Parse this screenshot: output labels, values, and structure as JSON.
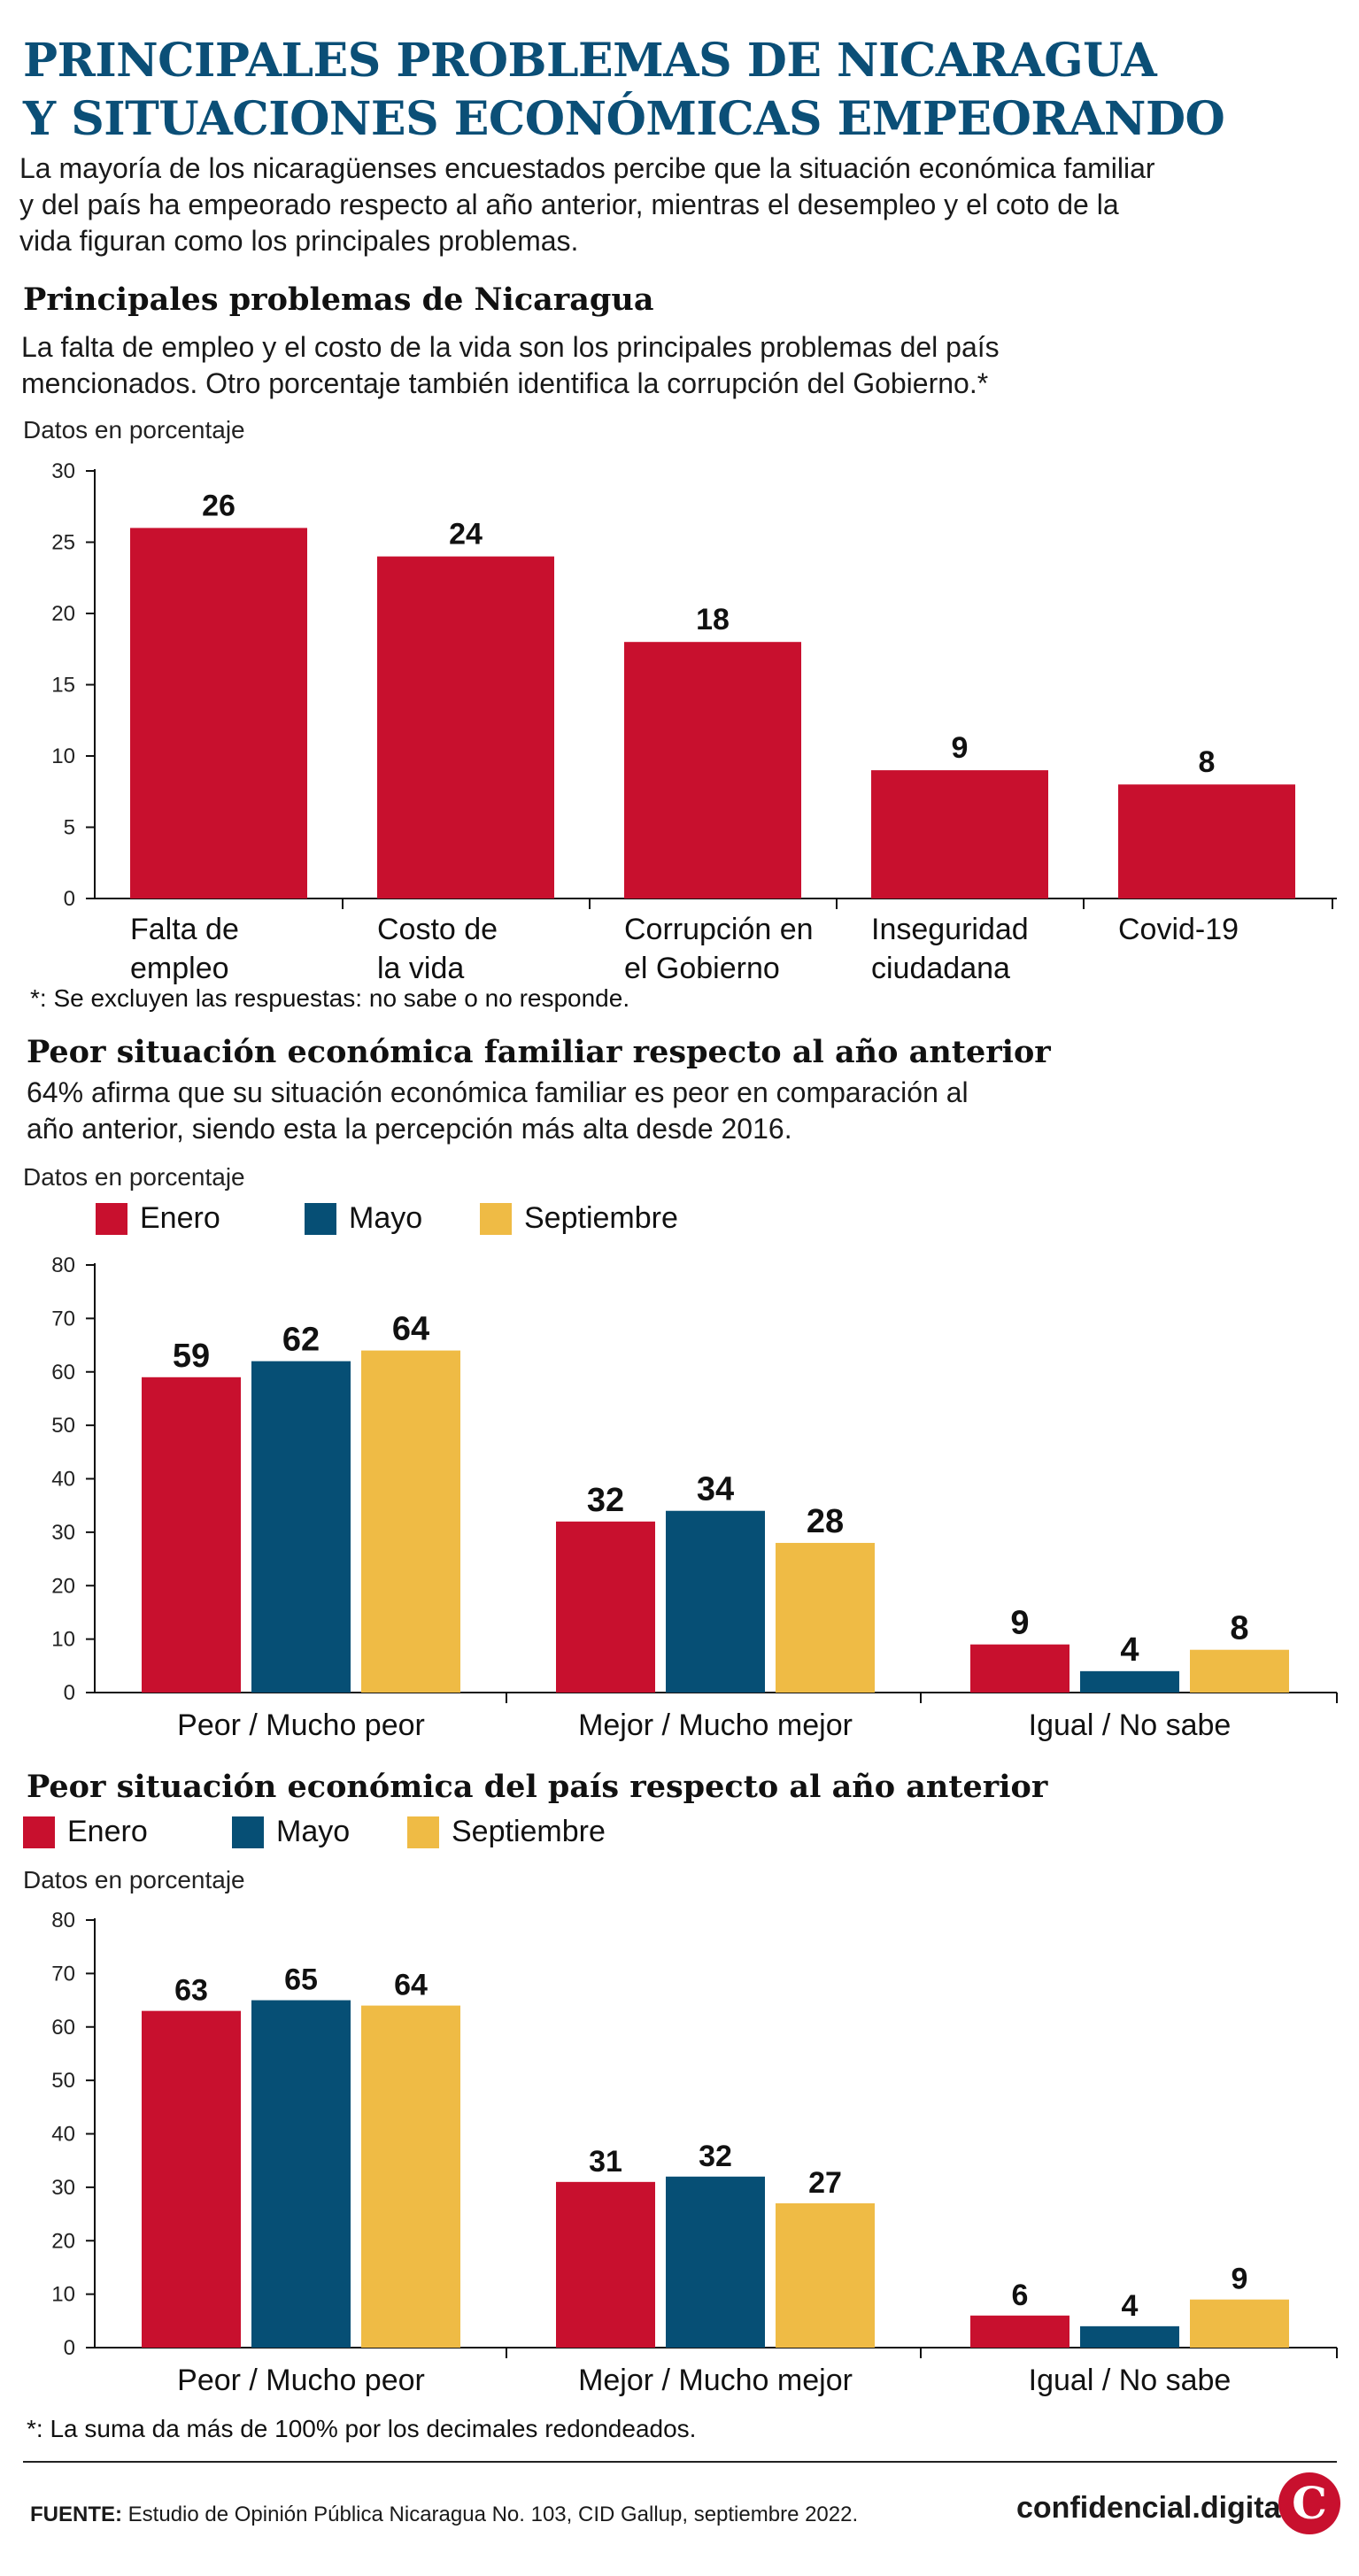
{
  "header": {
    "title_lines": [
      "PRINCIPALES PROBLEMAS DE NICARAGUA",
      "Y SITUACIONES ECONÓMICAS EMPEORANDO"
    ],
    "intro_lines": [
      "La mayoría de los nicaragüenses encuestados percibe que la situación económica familiar",
      "y del país ha empeorado respecto al año anterior, mientras el desempleo y el coto de la",
      "vida figuran como los principales problemas."
    ]
  },
  "section1": {
    "title": "Principales problemas de Nicaragua",
    "subtitle_lines": [
      "La falta de empleo y el costo de la vida son los principales problemas del país",
      "mencionados. Otro porcentaje también identifica la corrupción del Gobierno.*"
    ],
    "unit": "Datos en porcentaje",
    "note": "*: Se excluyen las respuestas: no sabe o no responde."
  },
  "section2": {
    "title": "Peor situación económica familiar respecto al año anterior",
    "subtitle_lines": [
      "64% afirma que su situación económica familiar es peor en comparación al",
      "año anterior, siendo esta la percepción más alta desde 2016."
    ],
    "unit": "Datos en porcentaje"
  },
  "section3": {
    "title": "Peor situación económica del país respecto al año anterior",
    "unit": "Datos en porcentaje",
    "note": "*: La suma da más de 100% por los decimales redondeados."
  },
  "footer": {
    "source_label": "FUENTE:",
    "source_text": " Estudio de Opinión Pública Nicaragua No. 103, CID Gallup, septiembre 2022.",
    "brand": "confidencial.digital",
    "logo_letter": "C"
  },
  "colors": {
    "red": "#c8102e",
    "blue": "#064f75",
    "yellow": "#efbb45",
    "title_blue": "#0b4f77"
  },
  "chart_data": [
    {
      "type": "bar",
      "title": "Principales problemas de Nicaragua",
      "ylabel": "Datos en porcentaje",
      "ylim": [
        0,
        30
      ],
      "yticks": [
        0,
        5,
        10,
        15,
        20,
        25,
        30
      ],
      "categories": [
        [
          "Falta de",
          "empleo"
        ],
        [
          "Costo de",
          "la vida"
        ],
        [
          "Corrupción en",
          "el Gobierno"
        ],
        [
          "Inseguridad",
          "ciudadana"
        ],
        [
          "Covid-19"
        ]
      ],
      "values": [
        26,
        24,
        18,
        9,
        8
      ],
      "color": "#c8102e"
    },
    {
      "type": "bar",
      "title": "Peor situación económica familiar respecto al año anterior",
      "ylabel": "Datos en porcentaje",
      "ylim": [
        0,
        80
      ],
      "yticks": [
        0,
        10,
        20,
        30,
        40,
        50,
        60,
        70,
        80
      ],
      "categories": [
        "Peor / Mucho peor",
        "Mejor / Mucho mejor",
        "Igual / No sabe"
      ],
      "series": [
        {
          "name": "Enero",
          "color": "#c8102e",
          "values": [
            59,
            32,
            9
          ]
        },
        {
          "name": "Mayo",
          "color": "#064f75",
          "values": [
            62,
            34,
            4
          ]
        },
        {
          "name": "Septiembre",
          "color": "#efbb45",
          "values": [
            64,
            28,
            8
          ]
        }
      ],
      "legend": "top-left"
    },
    {
      "type": "bar",
      "title": "Peor situación económica del país respecto al año anterior",
      "ylabel": "Datos en porcentaje",
      "ylim": [
        0,
        80
      ],
      "yticks": [
        0,
        10,
        20,
        30,
        40,
        50,
        60,
        70,
        80
      ],
      "categories": [
        "Peor / Mucho peor",
        "Mejor / Mucho mejor",
        "Igual / No sabe"
      ],
      "series": [
        {
          "name": "Enero",
          "color": "#c8102e",
          "values": [
            63,
            31,
            6
          ]
        },
        {
          "name": "Mayo",
          "color": "#064f75",
          "values": [
            65,
            32,
            4
          ]
        },
        {
          "name": "Septiembre",
          "color": "#efbb45",
          "values": [
            64,
            27,
            9
          ]
        }
      ],
      "legend": "top-left"
    }
  ]
}
